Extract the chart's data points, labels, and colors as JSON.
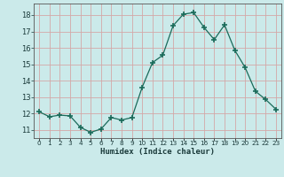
{
  "x": [
    0,
    1,
    2,
    3,
    4,
    5,
    6,
    7,
    8,
    9,
    10,
    11,
    12,
    13,
    14,
    15,
    16,
    17,
    18,
    19,
    20,
    21,
    22,
    23
  ],
  "y": [
    12.1,
    11.8,
    11.9,
    11.85,
    11.15,
    10.85,
    11.05,
    11.75,
    11.6,
    11.75,
    13.6,
    15.1,
    15.55,
    17.35,
    18.05,
    18.15,
    17.25,
    16.5,
    17.4,
    15.85,
    14.8,
    13.35,
    12.85,
    12.25
  ],
  "xlabel": "Humidex (Indice chaleur)",
  "ylim": [
    10.5,
    18.7
  ],
  "xlim": [
    -0.5,
    23.5
  ],
  "yticks": [
    11,
    12,
    13,
    14,
    15,
    16,
    17,
    18
  ],
  "xtick_labels": [
    "0",
    "1",
    "2",
    "3",
    "4",
    "5",
    "6",
    "7",
    "8",
    "9",
    "10",
    "11",
    "12",
    "13",
    "14",
    "15",
    "16",
    "17",
    "18",
    "19",
    "20",
    "21",
    "22",
    "23"
  ],
  "bg_color": "#cbeaea",
  "grid_color": "#d4a8a8",
  "line_color": "#1a6b5a",
  "marker_color": "#1a6b5a"
}
